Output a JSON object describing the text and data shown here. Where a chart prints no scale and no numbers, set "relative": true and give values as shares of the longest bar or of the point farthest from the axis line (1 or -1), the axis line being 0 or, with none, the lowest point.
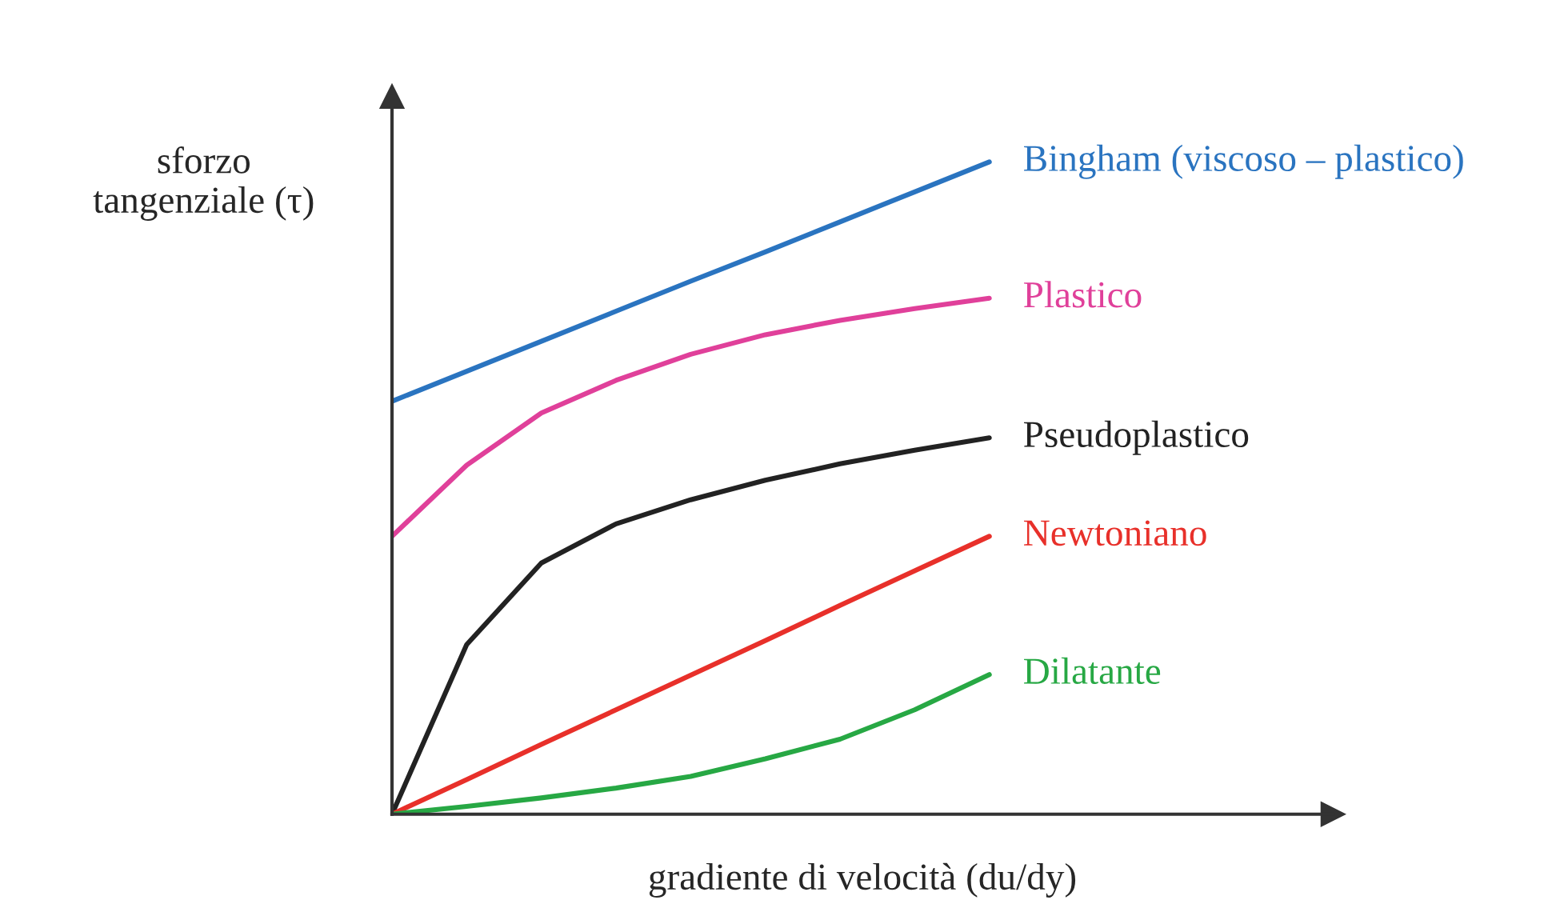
{
  "chart_data": {
    "type": "line",
    "relative": true,
    "xlabel": "gradiente di velocità (du/dy)",
    "ylabel": "sforzo\ntangenziale (τ)",
    "categories": [
      null,
      null,
      null,
      null,
      null,
      null,
      null,
      null,
      null,
      null,
      null,
      null,
      null
    ],
    "series": [
      {
        "name": "Bingham (viscoso – plastico)",
        "color": "#2a74c0",
        "values": [
          0.633,
          0.679,
          0.725,
          0.771,
          0.817,
          0.862,
          0.908,
          0.954,
          1.0,
          null,
          null,
          null,
          null
        ]
      },
      {
        "name": "Plastico",
        "color": "#e0409a",
        "values": [
          0.426,
          0.535,
          0.615,
          0.665,
          0.705,
          0.735,
          0.757,
          0.775,
          0.791,
          null,
          null,
          null,
          null
        ]
      },
      {
        "name": "Pseudoplastico",
        "color": "#222222",
        "values": [
          0,
          0.26,
          0.385,
          0.445,
          0.482,
          0.512,
          0.537,
          0.558,
          0.577,
          null,
          null,
          null,
          null
        ]
      },
      {
        "name": "Newtoniano",
        "color": "#e8302a",
        "values": [
          0,
          0.053,
          0.107,
          0.16,
          0.213,
          0.266,
          0.32,
          0.373,
          0.426,
          null,
          null,
          null,
          null
        ]
      },
      {
        "name": "Dilatante",
        "color": "#27a844",
        "values": [
          0,
          0.012,
          0.025,
          0.04,
          0.058,
          0.085,
          0.115,
          0.16,
          0.214,
          null,
          null,
          null,
          null
        ]
      }
    ],
    "legend": false,
    "marker": "none",
    "line_style": "solid"
  }
}
